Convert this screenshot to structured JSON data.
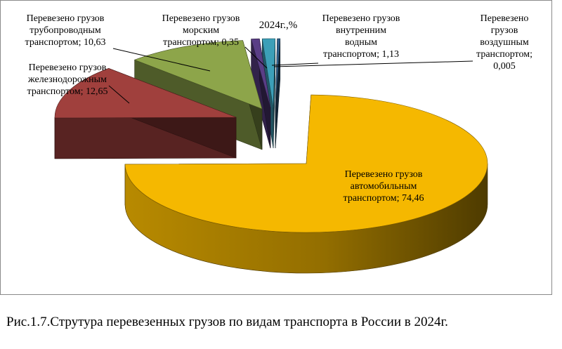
{
  "chart_data": {
    "type": "pie",
    "title": "2024г.,%",
    "slices": [
      {
        "label": [
          "Перевезено грузов",
          "автомобильным",
          "транспортом; 74,46"
        ],
        "value": 74.46,
        "color": "#f5b800"
      },
      {
        "label": [
          "Перевезено грузов",
          "железнодорожным",
          "транспортом; 12,65"
        ],
        "value": 12.65,
        "color": "#a0403d"
      },
      {
        "label": [
          "Перевезено грузов",
          "трубопроводным",
          "транспортом; 10,63"
        ],
        "value": 10.63,
        "color": "#8da54a"
      },
      {
        "label": [
          "Перевезено грузов",
          "морским",
          "транспортом; 0,35"
        ],
        "value": 0.35,
        "color": "#5a3e86"
      },
      {
        "label": [
          "Перевезено грузов",
          "внутренним",
          "водным",
          "транспортом; 1,13"
        ],
        "value": 1.13,
        "color": "#3c9fb8"
      },
      {
        "label": [
          "Перевезено",
          "грузов",
          "воздушным",
          "транспортом;",
          "0,005"
        ],
        "value": 0.005,
        "color": "#2f5f8a"
      }
    ]
  },
  "caption": "Рис.1.7.Струтура перевезенных грузов по видам транспорта в России в 2024г."
}
